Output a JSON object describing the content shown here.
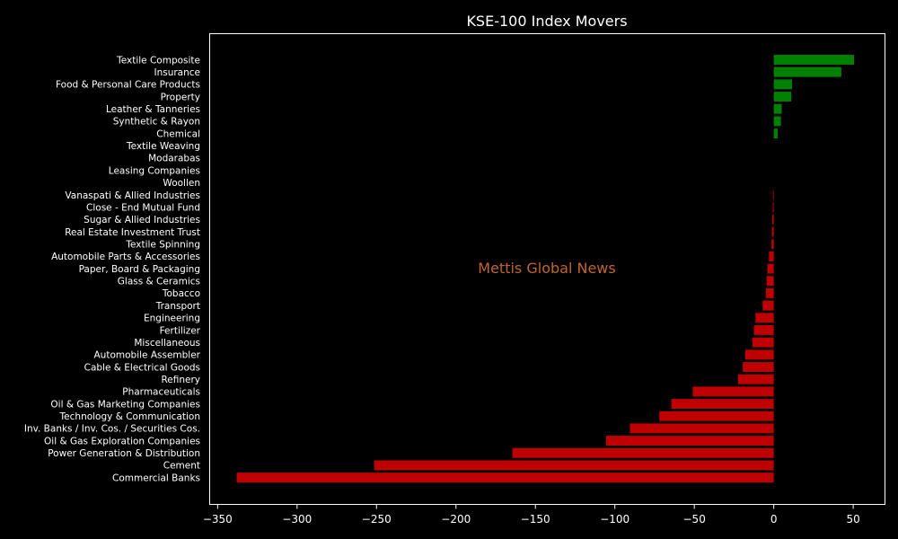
{
  "chart_data": {
    "type": "bar",
    "orientation": "horizontal",
    "title": "KSE-100 Index Movers",
    "xlabel": "",
    "ylabel": "",
    "xlim": [
      -355,
      70
    ],
    "xticks": [
      -350,
      -300,
      -250,
      -200,
      -150,
      -100,
      -50,
      0,
      50
    ],
    "tick_labels": [
      "−350",
      "−300",
      "−250",
      "−200",
      "−150",
      "−100",
      "−50",
      "0",
      "50"
    ],
    "grid": false,
    "legend": "none",
    "background_color": "#000000",
    "positive_color": "#008000",
    "negative_color": "#c00000",
    "watermark": "Mettis Global News",
    "categories": [
      "Textile Composite",
      "Insurance",
      "Food & Personal Care Products",
      "Property",
      "Leather & Tanneries",
      "Synthetic & Rayon",
      "Chemical",
      "Textile Weaving",
      "Modarabas",
      "Leasing Companies",
      "Woollen",
      "Vanaspati & Allied Industries",
      "Close - End Mutual Fund",
      "Sugar & Allied Industries",
      "Real Estate Investment Trust",
      "Textile Spinning",
      "Automobile Parts & Accessories",
      "Paper, Board & Packaging",
      "Glass & Ceramics",
      "Tobacco",
      "Transport",
      "Engineering",
      "Fertilizer",
      "Miscellaneous",
      "Automobile Assembler",
      "Cable & Electrical Goods",
      "Refinery",
      "Pharmaceuticals",
      "Oil & Gas Marketing Companies",
      "Technology & Communication",
      "Inv. Banks / Inv. Cos. / Securities Cos.",
      "Oil & Gas Exploration Companies",
      "Power Generation & Distribution",
      "Cement",
      "Commercial Banks"
    ],
    "values": [
      50.5,
      42.5,
      11.5,
      11,
      5,
      4.5,
      2.5,
      0,
      0,
      0,
      0,
      -0.5,
      -0.6,
      -1,
      -1.2,
      -1.4,
      -3,
      -4,
      -4.5,
      -5,
      -7,
      -11.5,
      -12.5,
      -13.5,
      -18,
      -19.5,
      -22.5,
      -51,
      -64.5,
      -72,
      -90.5,
      -105.5,
      -164.5,
      -251.5,
      -338
    ]
  }
}
